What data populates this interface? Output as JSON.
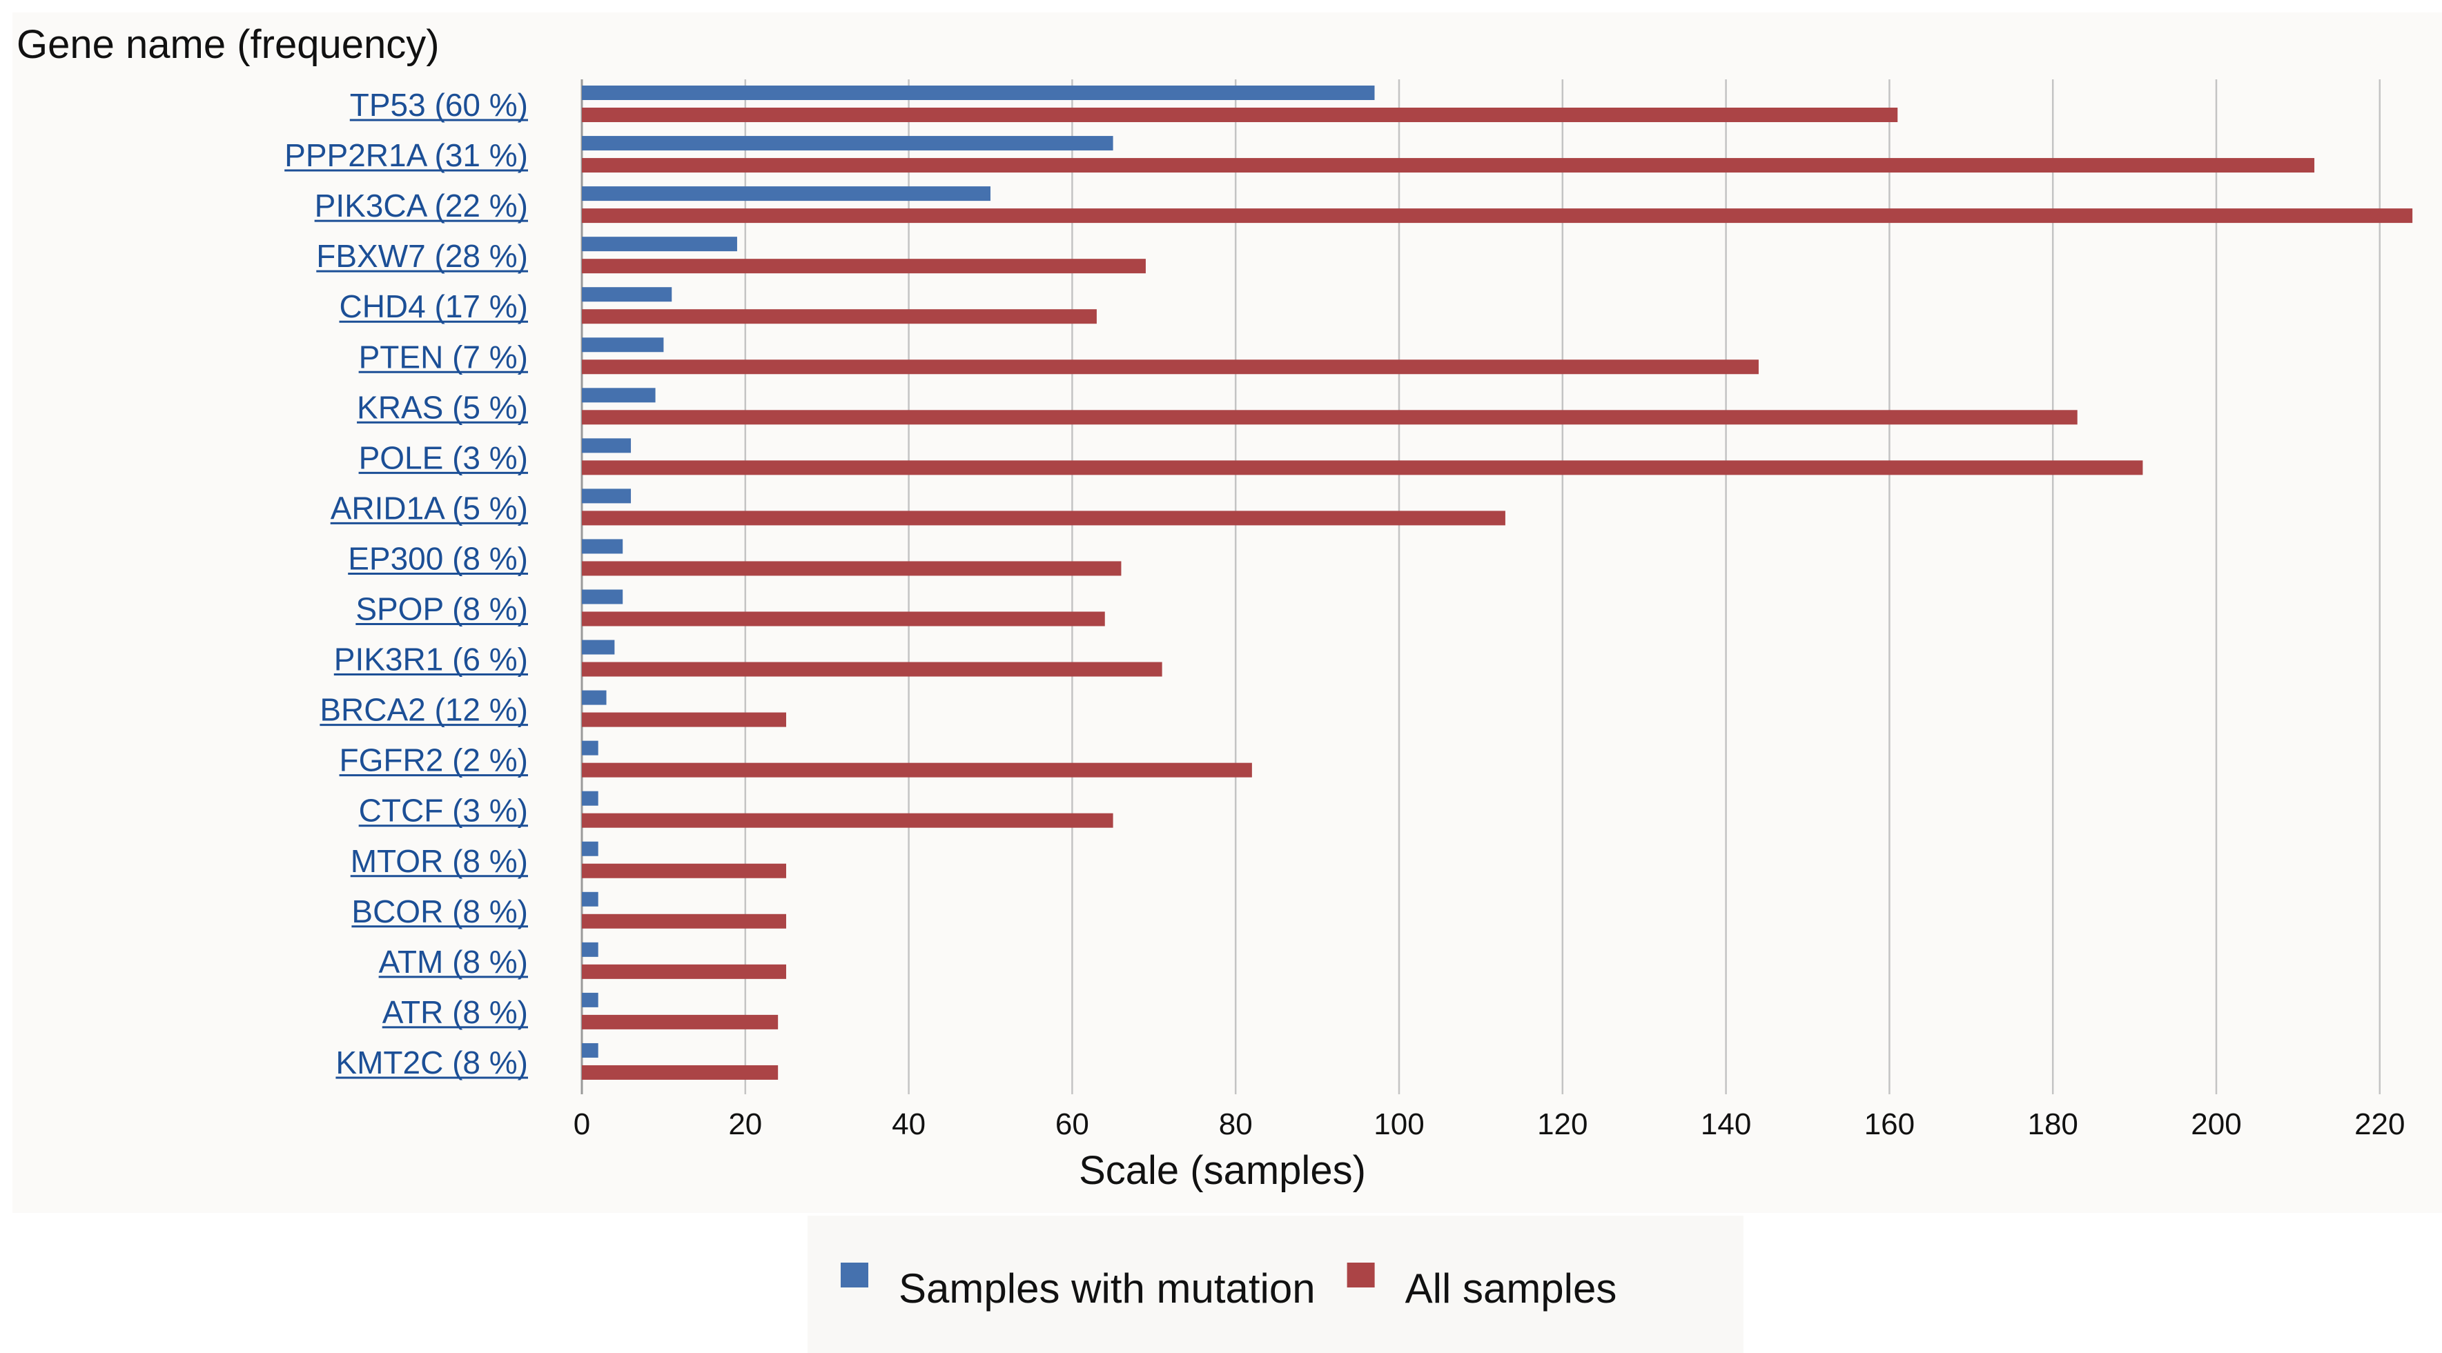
{
  "chart_data": {
    "type": "bar",
    "orientation": "horizontal",
    "title": "Gene name (frequency)",
    "xlabel": "Scale (samples)",
    "ylabel": "Gene name (frequency)",
    "xlim": [
      0,
      224
    ],
    "xticks": [
      0,
      20,
      40,
      60,
      80,
      100,
      120,
      140,
      160,
      180,
      200,
      220
    ],
    "grid": true,
    "legend_position": "bottom-center",
    "categories": [
      "TP53 (60 %)",
      "PPP2R1A (31 %)",
      "PIK3CA (22 %)",
      "FBXW7 (28 %)",
      "CHD4 (17 %)",
      "PTEN (7 %)",
      "KRAS (5 %)",
      "POLE (3 %)",
      "ARID1A (5 %)",
      "EP300 (8 %)",
      "SPOP (8 %)",
      "PIK3R1 (6 %)",
      "BRCA2 (12 %)",
      "FGFR2 (2 %)",
      "CTCF (3 %)",
      "MTOR (8 %)",
      "BCOR (8 %)",
      "ATM (8 %)",
      "ATR (8 %)",
      "KMT2C (8 %)"
    ],
    "series": [
      {
        "name": "Samples with mutation",
        "color": "#4571ae",
        "values": [
          97,
          65,
          50,
          19,
          11,
          10,
          9,
          6,
          6,
          5,
          5,
          4,
          3,
          2,
          2,
          2,
          2,
          2,
          2,
          2
        ]
      },
      {
        "name": "All samples",
        "color": "#ab4446",
        "values": [
          161,
          212,
          224,
          69,
          63,
          144,
          183,
          191,
          113,
          66,
          64,
          71,
          25,
          82,
          65,
          25,
          25,
          25,
          24,
          24
        ]
      }
    ]
  },
  "colors": {
    "link": "#1c4f96",
    "grid": "#c4c4c4",
    "text": "#111111"
  }
}
